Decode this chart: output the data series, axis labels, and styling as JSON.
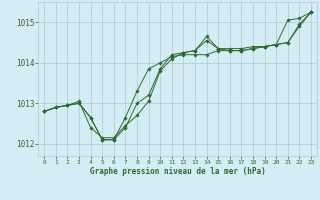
{
  "background_color": "#d4edf4",
  "grid_color": "#adc9d5",
  "line_color": "#2d6a2d",
  "xlabel": "Graphe pression niveau de la mer (hPa)",
  "xlim": [
    -0.5,
    23.5
  ],
  "ylim": [
    1011.7,
    1015.5
  ],
  "yticks": [
    1012,
    1013,
    1014,
    1015
  ],
  "xticks": [
    0,
    1,
    2,
    3,
    4,
    5,
    6,
    7,
    8,
    9,
    10,
    11,
    12,
    13,
    14,
    15,
    16,
    17,
    18,
    19,
    20,
    21,
    22,
    23
  ],
  "series": [
    [
      1012.8,
      1012.9,
      1012.95,
      1013.0,
      1012.65,
      1012.1,
      1012.1,
      1012.4,
      1013.0,
      1013.2,
      1013.85,
      1014.2,
      1014.25,
      1014.3,
      1014.65,
      1014.35,
      1014.3,
      1014.3,
      1014.35,
      1014.4,
      1014.45,
      1015.05,
      1015.1,
      1015.25
    ],
    [
      1012.8,
      1012.9,
      1012.95,
      1013.0,
      1012.65,
      1012.1,
      1012.1,
      1012.65,
      1013.3,
      1013.85,
      1014.0,
      1014.15,
      1014.2,
      1014.2,
      1014.2,
      1014.3,
      1014.3,
      1014.3,
      1014.35,
      1014.4,
      1014.45,
      1014.5,
      1014.95,
      1015.25
    ],
    [
      1012.8,
      1012.9,
      1012.95,
      1013.05,
      1012.4,
      1012.15,
      1012.15,
      1012.45,
      1012.7,
      1013.05,
      1013.8,
      1014.1,
      1014.25,
      1014.3,
      1014.55,
      1014.35,
      1014.35,
      1014.35,
      1014.4,
      1014.4,
      1014.45,
      1014.5,
      1014.9,
      1015.25
    ]
  ]
}
